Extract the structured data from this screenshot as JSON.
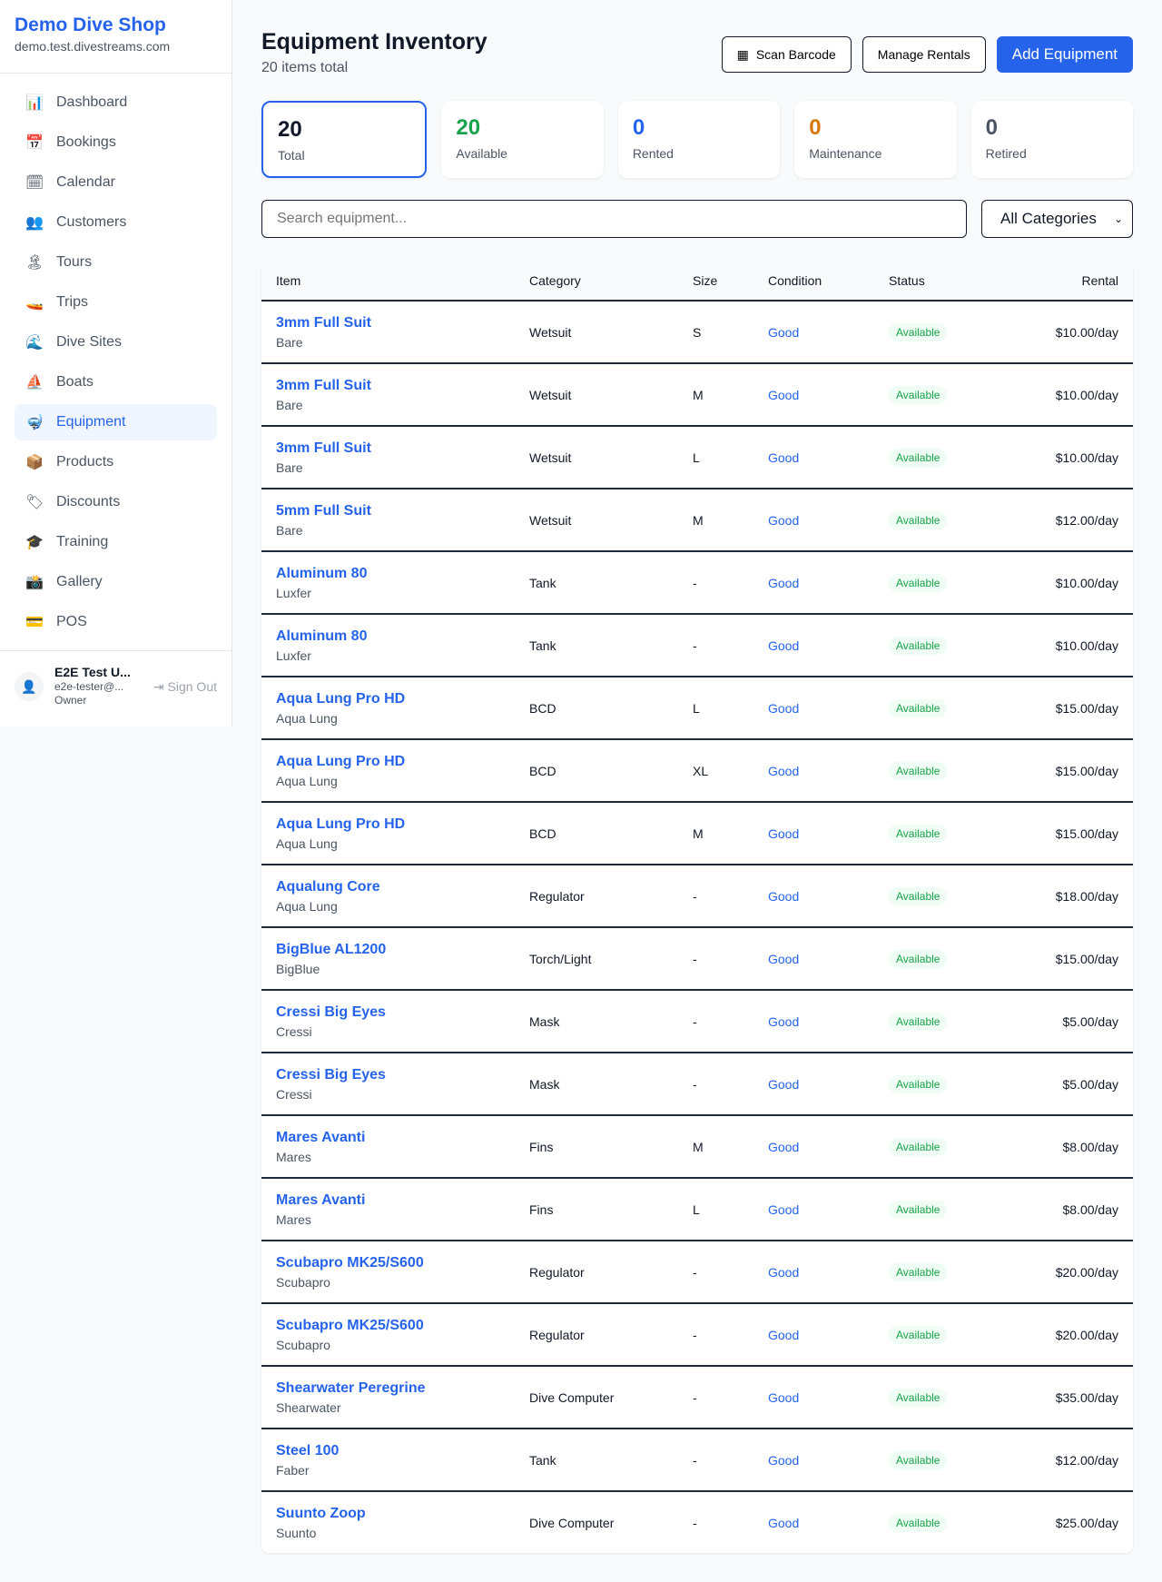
{
  "sidebar": {
    "shop_name": "Demo Dive Shop",
    "domain": "demo.test.divestreams.com",
    "items": [
      {
        "label": "Dashboard",
        "icon": "📊"
      },
      {
        "label": "Bookings",
        "icon": "📅"
      },
      {
        "label": "Calendar",
        "icon": "🗓"
      },
      {
        "label": "Customers",
        "icon": "👥"
      },
      {
        "label": "Tours",
        "icon": "🏝"
      },
      {
        "label": "Trips",
        "icon": "🚤"
      },
      {
        "label": "Dive Sites",
        "icon": "🌊"
      },
      {
        "label": "Boats",
        "icon": "⛵"
      },
      {
        "label": "Equipment",
        "icon": "🤿"
      },
      {
        "label": "Products",
        "icon": "📦"
      },
      {
        "label": "Discounts",
        "icon": "🏷"
      },
      {
        "label": "Training",
        "icon": "🎓"
      },
      {
        "label": "Gallery",
        "icon": "📸"
      },
      {
        "label": "POS",
        "icon": "💳"
      }
    ],
    "active": "Equipment",
    "user": {
      "name": "E2E Test U...",
      "email": "e2e-tester@...",
      "role": "Owner",
      "sign_out": "Sign Out"
    }
  },
  "header": {
    "title": "Equipment Inventory",
    "subtitle": "20 items total",
    "scan": "Scan Barcode",
    "manage": "Manage Rentals",
    "add": "Add Equipment"
  },
  "stats": [
    {
      "value": "20",
      "label": "Total",
      "color": "#111827"
    },
    {
      "value": "20",
      "label": "Available",
      "color": "#16a34a"
    },
    {
      "value": "0",
      "label": "Rented",
      "color": "#2563eb"
    },
    {
      "value": "0",
      "label": "Maintenance",
      "color": "#d97706"
    },
    {
      "value": "0",
      "label": "Retired",
      "color": "#4b5563"
    }
  ],
  "filters": {
    "search_placeholder": "Search equipment...",
    "category": "All Categories"
  },
  "table": {
    "headers": [
      "Item",
      "Category",
      "Size",
      "Condition",
      "Status",
      "Rental"
    ],
    "rows": [
      [
        "3mm Full Suit",
        "Bare",
        "Wetsuit",
        "S",
        "Good",
        "Available",
        "$10.00/day"
      ],
      [
        "3mm Full Suit",
        "Bare",
        "Wetsuit",
        "M",
        "Good",
        "Available",
        "$10.00/day"
      ],
      [
        "3mm Full Suit",
        "Bare",
        "Wetsuit",
        "L",
        "Good",
        "Available",
        "$10.00/day"
      ],
      [
        "5mm Full Suit",
        "Bare",
        "Wetsuit",
        "M",
        "Good",
        "Available",
        "$12.00/day"
      ],
      [
        "Aluminum 80",
        "Luxfer",
        "Tank",
        "-",
        "Good",
        "Available",
        "$10.00/day"
      ],
      [
        "Aluminum 80",
        "Luxfer",
        "Tank",
        "-",
        "Good",
        "Available",
        "$10.00/day"
      ],
      [
        "Aqua Lung Pro HD",
        "Aqua Lung",
        "BCD",
        "L",
        "Good",
        "Available",
        "$15.00/day"
      ],
      [
        "Aqua Lung Pro HD",
        "Aqua Lung",
        "BCD",
        "XL",
        "Good",
        "Available",
        "$15.00/day"
      ],
      [
        "Aqua Lung Pro HD",
        "Aqua Lung",
        "BCD",
        "M",
        "Good",
        "Available",
        "$15.00/day"
      ],
      [
        "Aqualung Core",
        "Aqua Lung",
        "Regulator",
        "-",
        "Good",
        "Available",
        "$18.00/day"
      ],
      [
        "BigBlue AL1200",
        "BigBlue",
        "Torch/Light",
        "-",
        "Good",
        "Available",
        "$15.00/day"
      ],
      [
        "Cressi Big Eyes",
        "Cressi",
        "Mask",
        "-",
        "Good",
        "Available",
        "$5.00/day"
      ],
      [
        "Cressi Big Eyes",
        "Cressi",
        "Mask",
        "-",
        "Good",
        "Available",
        "$5.00/day"
      ],
      [
        "Mares Avanti",
        "Mares",
        "Fins",
        "M",
        "Good",
        "Available",
        "$8.00/day"
      ],
      [
        "Mares Avanti",
        "Mares",
        "Fins",
        "L",
        "Good",
        "Available",
        "$8.00/day"
      ],
      [
        "Scubapro MK25/S600",
        "Scubapro",
        "Regulator",
        "-",
        "Good",
        "Available",
        "$20.00/day"
      ],
      [
        "Scubapro MK25/S600",
        "Scubapro",
        "Regulator",
        "-",
        "Good",
        "Available",
        "$20.00/day"
      ],
      [
        "Shearwater Peregrine",
        "Shearwater",
        "Dive Computer",
        "-",
        "Good",
        "Available",
        "$35.00/day"
      ],
      [
        "Steel 100",
        "Faber",
        "Tank",
        "-",
        "Good",
        "Available",
        "$12.00/day"
      ],
      [
        "Suunto Zoop",
        "Suunto",
        "Dive Computer",
        "-",
        "Good",
        "Available",
        "$25.00/day"
      ]
    ]
  }
}
